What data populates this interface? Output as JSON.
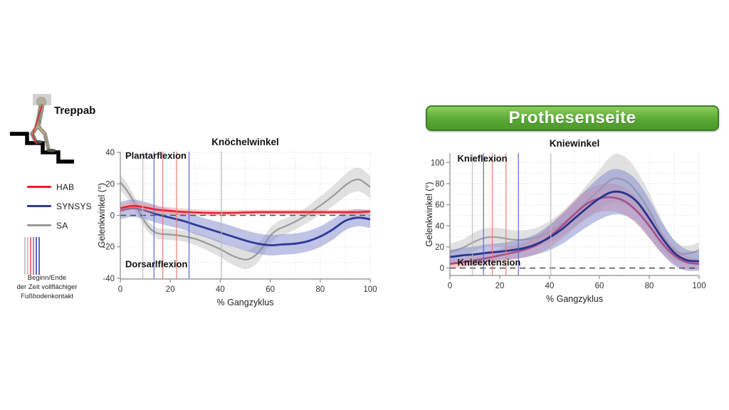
{
  "sidebar": {
    "condition_label": "Treppab",
    "legend": [
      {
        "label": "HAB",
        "color": "#e81f2e"
      },
      {
        "label": "SYNSYS",
        "color": "#2c3a96"
      },
      {
        "label": "SA",
        "color": "#9a9a9a"
      }
    ],
    "event_legend": {
      "line_colors": [
        "#c6c6c6",
        "#c6c6c6",
        "#f0776b",
        "#f0776b",
        "#5865cf",
        "#5865cf"
      ],
      "caption_lines": [
        "Beginn/Ende",
        "der Zeit vollflächiger",
        "Fußbodenkontakt"
      ]
    }
  },
  "banner": {
    "label": "Prothesenseite",
    "color": "#5aa936"
  },
  "chart_data": [
    {
      "type": "line",
      "title": "Knöchelwinkel",
      "xlabel": "% Gangzyklus",
      "ylabel": "Gelenkwinkel (°)",
      "x_range": [
        0,
        100
      ],
      "y_range": [
        -40.5,
        40.5
      ],
      "x_ticks": [
        0,
        20,
        40,
        60,
        80,
        100
      ],
      "y_ticks": [
        -40,
        -20,
        0,
        20,
        40
      ],
      "grid_step": 10,
      "zero_dash_line": true,
      "inner_labels": [
        {
          "text": "Plantarflexion",
          "x": 2,
          "y": 36
        },
        {
          "text": "Dorsarlflexion",
          "x": 2,
          "y": -33
        }
      ],
      "event_lines": [
        {
          "x": 9,
          "color": "#bdbdbd"
        },
        {
          "x": 13.5,
          "color": "#5865cf"
        },
        {
          "x": 17,
          "color": "#f0776b"
        },
        {
          "x": 22.5,
          "color": "#f0776b"
        },
        {
          "x": 27.5,
          "color": "#5865cf"
        },
        {
          "x": 40.5,
          "color": "#bdbdbd"
        }
      ],
      "series": [
        {
          "name": "SA",
          "color": "#9a9a9a",
          "width": 2.2,
          "band_color": "#c9c9c9",
          "band_opacity": 0.55,
          "x": [
            0,
            3,
            6,
            9,
            12,
            15,
            18,
            22,
            26,
            30,
            35,
            40,
            44,
            48,
            51,
            54,
            57,
            60,
            63,
            66,
            70,
            74,
            78,
            82,
            86,
            90,
            93,
            96,
            100
          ],
          "mean": [
            21,
            15,
            7,
            -2,
            -8.5,
            -11.5,
            -12,
            -12.5,
            -13.5,
            -15,
            -18,
            -21.5,
            -25,
            -27.5,
            -28,
            -25.5,
            -20,
            -13,
            -9,
            -7,
            -4,
            -0.5,
            4,
            8.5,
            13.5,
            19,
            22,
            22.5,
            18
          ],
          "spread": [
            5,
            4.5,
            4,
            4,
            3.5,
            3.5,
            3.5,
            3.5,
            3.5,
            4,
            4.5,
            5,
            5.5,
            6,
            6,
            6,
            5.5,
            5,
            5,
            5,
            5,
            5,
            5.5,
            6,
            6.5,
            7,
            7.5,
            7.5,
            7
          ]
        },
        {
          "name": "SYNSYS",
          "color": "#2c3a96",
          "width": 2.8,
          "band_color": "#7f88cb",
          "band_opacity": 0.5,
          "x": [
            0,
            5,
            10,
            15,
            20,
            25,
            30,
            35,
            40,
            45,
            50,
            55,
            60,
            65,
            70,
            75,
            80,
            85,
            90,
            95,
            100
          ],
          "mean": [
            3,
            4.5,
            3,
            0.5,
            -1.5,
            -3.5,
            -6,
            -8.5,
            -11,
            -13.5,
            -16,
            -18,
            -19,
            -18.5,
            -18,
            -16.5,
            -13.5,
            -9,
            -3.5,
            -1.5,
            -2.5
          ],
          "spread": [
            5.5,
            5.5,
            5.5,
            5.5,
            5.5,
            5.5,
            6,
            6,
            6.5,
            6.5,
            6.5,
            6.5,
            6.5,
            6.5,
            6.5,
            6.5,
            6.5,
            6.5,
            6,
            5.5,
            5.5
          ]
        },
        {
          "name": "HAB",
          "color": "#e81f2e",
          "width": 2.6,
          "band_color": "#f59a9a",
          "band_opacity": 0.5,
          "x": [
            0,
            5,
            10,
            15,
            20,
            25,
            30,
            35,
            40,
            45,
            50,
            55,
            60,
            65,
            70,
            75,
            80,
            85,
            90,
            95,
            100
          ],
          "mean": [
            4.5,
            6,
            5,
            3.5,
            2.8,
            2.2,
            1.8,
            1.6,
            1.5,
            1.6,
            1.8,
            2,
            2,
            2,
            2,
            2,
            2,
            2,
            2,
            2,
            2.5
          ],
          "spread": [
            2.5,
            2.5,
            2.5,
            2.5,
            2.3,
            2.2,
            2,
            1.8,
            1.7,
            1.6,
            1.6,
            1.5,
            1.5,
            1.5,
            1.5,
            1.5,
            1.5,
            1.5,
            1.5,
            1.5,
            1.5
          ]
        }
      ]
    },
    {
      "type": "line",
      "title": "Kniewinkel",
      "xlabel": "% Gangzyklus",
      "ylabel": "Gelenkwinkel (°)",
      "x_range": [
        0,
        100
      ],
      "y_range": [
        -7,
        109
      ],
      "x_ticks": [
        0,
        20,
        40,
        60,
        80,
        100
      ],
      "y_ticks": [
        0,
        20,
        40,
        60,
        80,
        100
      ],
      "grid_step": 10,
      "zero_dash_line": true,
      "inner_labels": [
        {
          "text": "Knieflexion",
          "x": 3,
          "y": 101
        },
        {
          "text": "Knieextension",
          "x": 3,
          "y": 2.5
        }
      ],
      "event_lines": [
        {
          "x": 9,
          "color": "#bdbdbd"
        },
        {
          "x": 13.5,
          "color": "#5865cf"
        },
        {
          "x": 17,
          "color": "#f0776b"
        },
        {
          "x": 22.5,
          "color": "#f0776b"
        },
        {
          "x": 27.5,
          "color": "#5865cf"
        },
        {
          "x": 40.5,
          "color": "#bdbdbd"
        }
      ],
      "series": [
        {
          "name": "SA",
          "color": "#a2a2a8",
          "width": 2.2,
          "band_color": "#c9c9c9",
          "band_opacity": 0.55,
          "x": [
            0,
            5,
            9,
            13,
            17,
            21,
            25,
            30,
            35,
            40,
            45,
            50,
            55,
            60,
            63,
            66,
            69,
            72,
            75,
            78,
            81,
            85,
            89,
            93,
            97,
            100
          ],
          "mean": [
            15,
            19,
            24,
            28,
            29.5,
            28.5,
            27,
            27,
            29.5,
            34.5,
            42,
            52,
            63,
            74,
            81,
            85,
            84,
            80,
            72,
            62,
            50,
            32,
            19,
            13.5,
            14.5,
            17
          ],
          "spread": [
            8,
            8,
            8.5,
            9,
            9,
            9,
            9,
            9,
            9,
            10,
            11.5,
            13,
            16,
            19,
            21,
            23,
            23,
            22,
            20,
            18,
            16,
            13,
            10,
            8,
            7.5,
            7.5
          ]
        },
        {
          "name": "HAB",
          "color": "#d4164a",
          "width": 2.6,
          "band_color": "#f59a9a",
          "band_opacity": 0.5,
          "x": [
            0,
            5,
            10,
            15,
            20,
            25,
            30,
            35,
            40,
            45,
            50,
            55,
            60,
            65,
            70,
            75,
            80,
            85,
            90,
            95,
            100
          ],
          "mean": [
            4,
            5.5,
            7.5,
            9.5,
            12,
            14.5,
            17.5,
            22,
            30,
            40,
            51,
            61,
            66,
            67,
            63.5,
            54,
            40,
            24,
            12,
            5.5,
            4
          ],
          "spread": [
            4,
            4.5,
            5,
            5.5,
            6,
            6.5,
            7,
            8.5,
            10.5,
            12,
            13,
            13,
            13,
            13,
            13,
            12.5,
            12,
            10,
            8,
            6,
            5
          ]
        },
        {
          "name": "SYNSYS",
          "color": "#27348b",
          "width": 2.8,
          "band_color": "#7f88cb",
          "band_opacity": 0.5,
          "x": [
            0,
            5,
            10,
            15,
            20,
            25,
            30,
            35,
            40,
            45,
            50,
            55,
            60,
            65,
            70,
            75,
            80,
            85,
            90,
            95,
            100
          ],
          "mean": [
            10.5,
            12,
            13,
            14.5,
            15.5,
            17,
            19,
            23,
            29,
            37,
            47,
            57,
            66,
            72,
            71,
            63,
            47,
            29,
            14.5,
            7.5,
            6.5
          ],
          "spread": [
            7,
            7,
            7.5,
            8,
            8,
            8.5,
            9,
            10,
            12,
            14,
            16,
            18,
            20,
            21.5,
            21,
            20,
            18,
            15,
            12,
            10,
            9
          ]
        }
      ]
    }
  ]
}
